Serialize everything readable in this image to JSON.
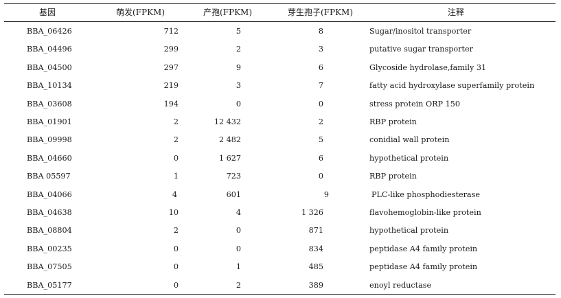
{
  "table": {
    "headers": {
      "gene": "基因",
      "germination": "萌发(FPKM)",
      "sporulation": "产孢(FPKM)",
      "conidia": "芽生孢子(FPKM)",
      "annotation": "注释"
    },
    "rows": [
      {
        "gene": "BBA_06426",
        "germination": "712",
        "sporulation": "5",
        "conidia": "8",
        "annotation": "Sugar/inositol transporter"
      },
      {
        "gene": "BBA_04496",
        "germination": "299",
        "sporulation": "2",
        "conidia": "3",
        "annotation": "putative sugar transporter"
      },
      {
        "gene": "BBA_04500",
        "germination": "297",
        "sporulation": "9",
        "conidia": "6",
        "annotation": "Glycoside hydrolase,family 31"
      },
      {
        "gene": "BBA_10134",
        "germination": "219",
        "sporulation": "3",
        "conidia": "7",
        "annotation": "fatty acid hydroxylase superfamily protein"
      },
      {
        "gene": "BBA_03608",
        "germination": "194",
        "sporulation": "0",
        "conidia": "0",
        "annotation": "stress protein ORP 150"
      },
      {
        "gene": "BBA_01901",
        "germination": "2",
        "sporulation": "12 432",
        "conidia": "2",
        "annotation": "RBP protein"
      },
      {
        "gene": "BBA_09998",
        "germination": "2",
        "sporulation": "2 482",
        "conidia": "5",
        "annotation": "conidial wall protein"
      },
      {
        "gene": "BBA_04660",
        "germination": "0",
        "sporulation": "1 627",
        "conidia": "6",
        "annotation": "hypothetical protein"
      },
      {
        "gene": "BBA 05597",
        "germination": "1",
        "sporulation": "723",
        "conidia": "0",
        "annotation": "RBP protein"
      },
      {
        "gene": "BBA_04066",
        "germination": "4",
        "sporulation": "601",
        "conidia": "9",
        "annotation": "PLC-like phosphodiesterase"
      },
      {
        "gene": "BBA_04638",
        "germination": "10",
        "sporulation": "4",
        "conidia": "1 326",
        "annotation": "flavohemoglobin-like protein"
      },
      {
        "gene": "BBA_08804",
        "germination": "2",
        "sporulation": "0",
        "conidia": "871",
        "annotation": "hypothetical protein"
      },
      {
        "gene": "BBA_00235",
        "germination": "0",
        "sporulation": "0",
        "conidia": "834",
        "annotation": "peptidase A4 family protein"
      },
      {
        "gene": "BBA_07505",
        "germination": "0",
        "sporulation": "1",
        "conidia": "485",
        "annotation": "peptidase A4 family protein"
      },
      {
        "gene": "BBA_05177",
        "germination": "0",
        "sporulation": "2",
        "conidia": "389",
        "annotation": "enoyl reductase"
      }
    ]
  }
}
